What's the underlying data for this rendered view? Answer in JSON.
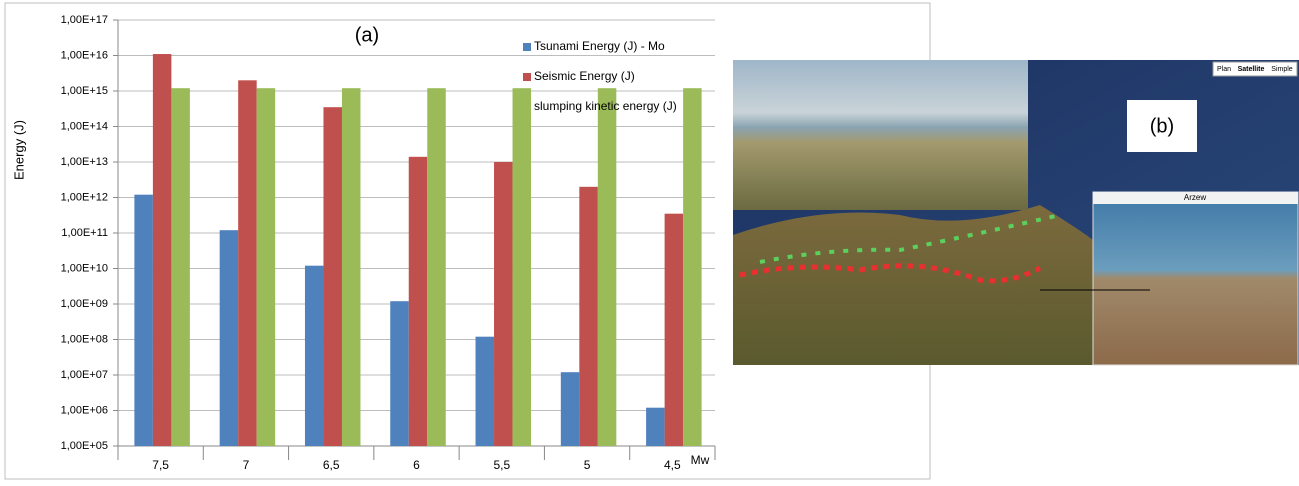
{
  "chart_data": {
    "type": "bar",
    "panel_label": "(a)",
    "y_label": "Energy (J)",
    "x_label": "Mw",
    "categories": [
      "7,5",
      "7",
      "6,5",
      "6",
      "5,5",
      "5",
      "4,5"
    ],
    "series": [
      {
        "name": "Tsunami Energy (J) - Mo",
        "color": "#4f81bd",
        "values": [
          1200000000000.0,
          120000000000.0,
          12000000000.0,
          1200000000.0,
          120000000.0,
          12000000.0,
          1200000.0
        ]
      },
      {
        "name": "Seismic Energy (J)",
        "color": "#c0504d",
        "values": [
          1.1e+16,
          2000000000000000.0,
          350000000000000.0,
          14000000000000.0,
          10000000000000.0,
          2000000000000.0,
          350000000000.0
        ]
      },
      {
        "name": "slumping kinetic energy (J)",
        "color": "#9bbb59",
        "values": [
          1200000000000000.0,
          1200000000000000.0,
          1200000000000000.0,
          1200000000000000.0,
          1200000000000000.0,
          1200000000000000.0,
          1200000000000000.0
        ]
      }
    ],
    "ylim": [
      100000.0,
      1e+17
    ],
    "log_scale": true,
    "grid": true,
    "legend": "top-right",
    "yticks": [
      {
        "value": 100000.0,
        "label": "1,00E+05"
      },
      {
        "value": 1000000.0,
        "label": "1,00E+06"
      },
      {
        "value": 10000000.0,
        "label": "1,00E+07"
      },
      {
        "value": 100000000.0,
        "label": "1,00E+08"
      },
      {
        "value": 1000000000.0,
        "label": "1,00E+09"
      },
      {
        "value": 10000000000.0,
        "label": "1,00E+10"
      },
      {
        "value": 100000000000.0,
        "label": "1,00E+11"
      },
      {
        "value": 1000000000000.0,
        "label": "1,00E+12"
      },
      {
        "value": 10000000000000.0,
        "label": "1,00E+13"
      },
      {
        "value": 100000000000000.0,
        "label": "1,00E+14"
      },
      {
        "value": 1000000000000000.0,
        "label": "1,00E+15"
      },
      {
        "value": 1e+16,
        "label": "1,00E+16"
      },
      {
        "value": 1e+17,
        "label": "1,00E+17"
      }
    ]
  },
  "panel_b": {
    "label": "(b)",
    "map_buttons": [
      "Plan",
      "Satellite",
      "Simple"
    ],
    "inset_title": "Arzew"
  }
}
